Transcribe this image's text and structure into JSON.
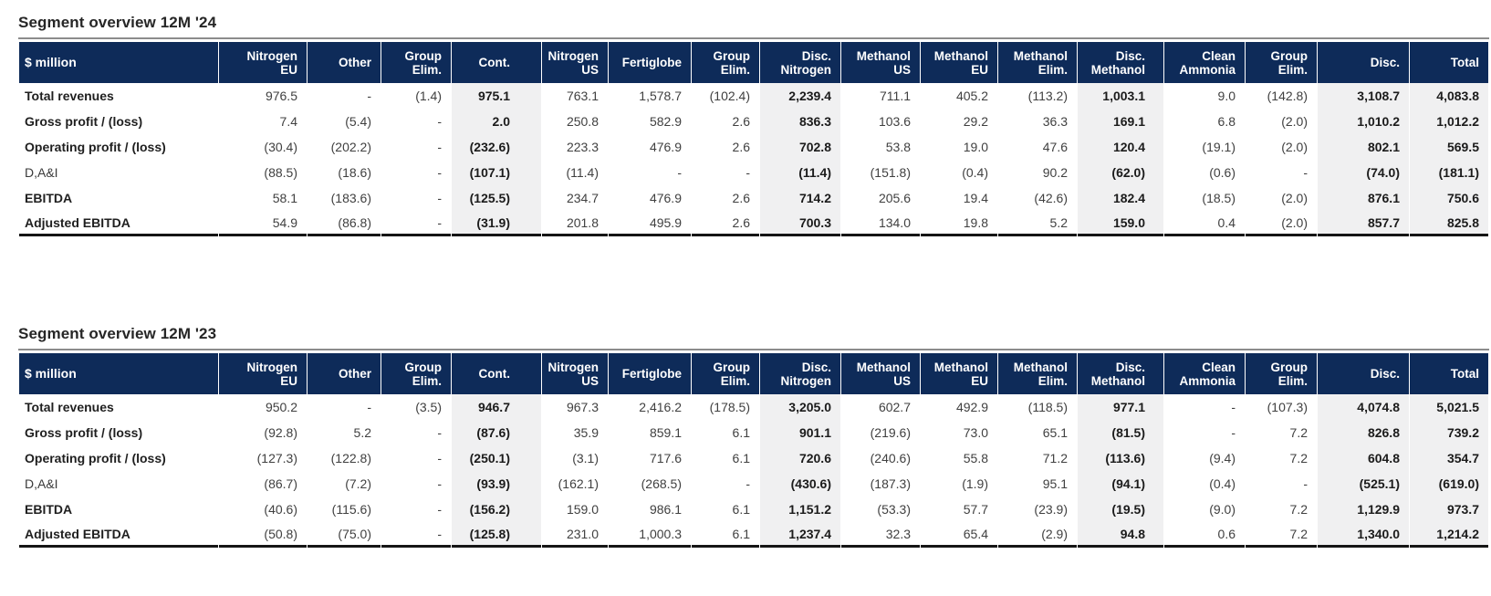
{
  "colors": {
    "header_bg": "#0e2b59",
    "band_bg": "#f0f0f1",
    "title_color": "#262626",
    "number_color": "#404040",
    "number_bold_color": "#1b1b1b",
    "rule_color": "#8c8c8c",
    "bottom_border": "#151515"
  },
  "tables": [
    {
      "title": "Segment overview 12M '24",
      "unit_label": "$ million",
      "columns": [
        {
          "label": "Nitrogen\nEU",
          "emphasis": false
        },
        {
          "label": "Other",
          "emphasis": false
        },
        {
          "label": "Group\nElim.",
          "emphasis": false
        },
        {
          "label": "Cont.",
          "emphasis": true
        },
        {
          "label": "Nitrogen\nUS",
          "emphasis": false
        },
        {
          "label": "Fertiglobe",
          "emphasis": false
        },
        {
          "label": "Group\nElim.",
          "emphasis": false
        },
        {
          "label": "Disc.\nNitrogen",
          "emphasis": true
        },
        {
          "label": "Methanol\nUS",
          "emphasis": false
        },
        {
          "label": "Methanol\nEU",
          "emphasis": false
        },
        {
          "label": "Methanol\nElim.",
          "emphasis": false
        },
        {
          "label": "Disc.\nMethanol",
          "emphasis": true
        },
        {
          "label": "Clean\nAmmonia",
          "emphasis": false
        },
        {
          "label": "Group\nElim.",
          "emphasis": false
        },
        {
          "label": "Disc.",
          "emphasis": true
        },
        {
          "label": "Total",
          "emphasis": true
        }
      ],
      "rows": [
        {
          "label": "Total revenues",
          "bold_label": true,
          "values": [
            "976.5",
            "-",
            "(1.4)",
            "975.1",
            "763.1",
            "1,578.7",
            "(102.4)",
            "2,239.4",
            "711.1",
            "405.2",
            "(113.2)",
            "1,003.1",
            "9.0",
            "(142.8)",
            "3,108.7",
            "4,083.8"
          ]
        },
        {
          "label": "Gross profit / (loss)",
          "bold_label": true,
          "values": [
            "7.4",
            "(5.4)",
            "-",
            "2.0",
            "250.8",
            "582.9",
            "2.6",
            "836.3",
            "103.6",
            "29.2",
            "36.3",
            "169.1",
            "6.8",
            "(2.0)",
            "1,010.2",
            "1,012.2"
          ]
        },
        {
          "label": "Operating profit / (loss)",
          "bold_label": true,
          "values": [
            "(30.4)",
            "(202.2)",
            "-",
            "(232.6)",
            "223.3",
            "476.9",
            "2.6",
            "702.8",
            "53.8",
            "19.0",
            "47.6",
            "120.4",
            "(19.1)",
            "(2.0)",
            "802.1",
            "569.5"
          ]
        },
        {
          "label": "D,A&I",
          "bold_label": false,
          "values": [
            "(88.5)",
            "(18.6)",
            "-",
            "(107.1)",
            "(11.4)",
            "-",
            "-",
            "(11.4)",
            "(151.8)",
            "(0.4)",
            "90.2",
            "(62.0)",
            "(0.6)",
            "-",
            "(74.0)",
            "(181.1)"
          ]
        },
        {
          "label": "EBITDA",
          "bold_label": true,
          "values": [
            "58.1",
            "(183.6)",
            "-",
            "(125.5)",
            "234.7",
            "476.9",
            "2.6",
            "714.2",
            "205.6",
            "19.4",
            "(42.6)",
            "182.4",
            "(18.5)",
            "(2.0)",
            "876.1",
            "750.6"
          ]
        },
        {
          "label": "Adjusted EBITDA",
          "bold_label": true,
          "values": [
            "54.9",
            "(86.8)",
            "-",
            "(31.9)",
            "201.8",
            "495.9",
            "2.6",
            "700.3",
            "134.0",
            "19.8",
            "5.2",
            "159.0",
            "0.4",
            "(2.0)",
            "857.7",
            "825.8"
          ]
        }
      ]
    },
    {
      "title": "Segment overview 12M '23",
      "unit_label": "$ million",
      "columns": [
        {
          "label": "Nitrogen\nEU",
          "emphasis": false
        },
        {
          "label": "Other",
          "emphasis": false
        },
        {
          "label": "Group\nElim.",
          "emphasis": false
        },
        {
          "label": "Cont.",
          "emphasis": true
        },
        {
          "label": "Nitrogen\nUS",
          "emphasis": false
        },
        {
          "label": "Fertiglobe",
          "emphasis": false
        },
        {
          "label": "Group\nElim.",
          "emphasis": false
        },
        {
          "label": "Disc.\nNitrogen",
          "emphasis": true
        },
        {
          "label": "Methanol\nUS",
          "emphasis": false
        },
        {
          "label": "Methanol\nEU",
          "emphasis": false
        },
        {
          "label": "Methanol\nElim.",
          "emphasis": false
        },
        {
          "label": "Disc.\nMethanol",
          "emphasis": true
        },
        {
          "label": "Clean\nAmmonia",
          "emphasis": false
        },
        {
          "label": "Group\nElim.",
          "emphasis": false
        },
        {
          "label": "Disc.",
          "emphasis": true
        },
        {
          "label": "Total",
          "emphasis": true
        }
      ],
      "rows": [
        {
          "label": "Total revenues",
          "bold_label": true,
          "values": [
            "950.2",
            "-",
            "(3.5)",
            "946.7",
            "967.3",
            "2,416.2",
            "(178.5)",
            "3,205.0",
            "602.7",
            "492.9",
            "(118.5)",
            "977.1",
            "-",
            "(107.3)",
            "4,074.8",
            "5,021.5"
          ]
        },
        {
          "label": "Gross profit / (loss)",
          "bold_label": true,
          "values": [
            "(92.8)",
            "5.2",
            "-",
            "(87.6)",
            "35.9",
            "859.1",
            "6.1",
            "901.1",
            "(219.6)",
            "73.0",
            "65.1",
            "(81.5)",
            "-",
            "7.2",
            "826.8",
            "739.2"
          ]
        },
        {
          "label": "Operating profit / (loss)",
          "bold_label": true,
          "values": [
            "(127.3)",
            "(122.8)",
            "-",
            "(250.1)",
            "(3.1)",
            "717.6",
            "6.1",
            "720.6",
            "(240.6)",
            "55.8",
            "71.2",
            "(113.6)",
            "(9.4)",
            "7.2",
            "604.8",
            "354.7"
          ]
        },
        {
          "label": "D,A&I",
          "bold_label": false,
          "values": [
            "(86.7)",
            "(7.2)",
            "-",
            "(93.9)",
            "(162.1)",
            "(268.5)",
            "-",
            "(430.6)",
            "(187.3)",
            "(1.9)",
            "95.1",
            "(94.1)",
            "(0.4)",
            "-",
            "(525.1)",
            "(619.0)"
          ]
        },
        {
          "label": "EBITDA",
          "bold_label": true,
          "values": [
            "(40.6)",
            "(115.6)",
            "-",
            "(156.2)",
            "159.0",
            "986.1",
            "6.1",
            "1,151.2",
            "(53.3)",
            "57.7",
            "(23.9)",
            "(19.5)",
            "(9.0)",
            "7.2",
            "1,129.9",
            "973.7"
          ]
        },
        {
          "label": "Adjusted EBITDA",
          "bold_label": true,
          "values": [
            "(50.8)",
            "(75.0)",
            "-",
            "(125.8)",
            "231.0",
            "1,000.3",
            "6.1",
            "1,237.4",
            "32.3",
            "65.4",
            "(2.9)",
            "94.8",
            "0.6",
            "7.2",
            "1,340.0",
            "1,214.2"
          ]
        }
      ]
    }
  ]
}
